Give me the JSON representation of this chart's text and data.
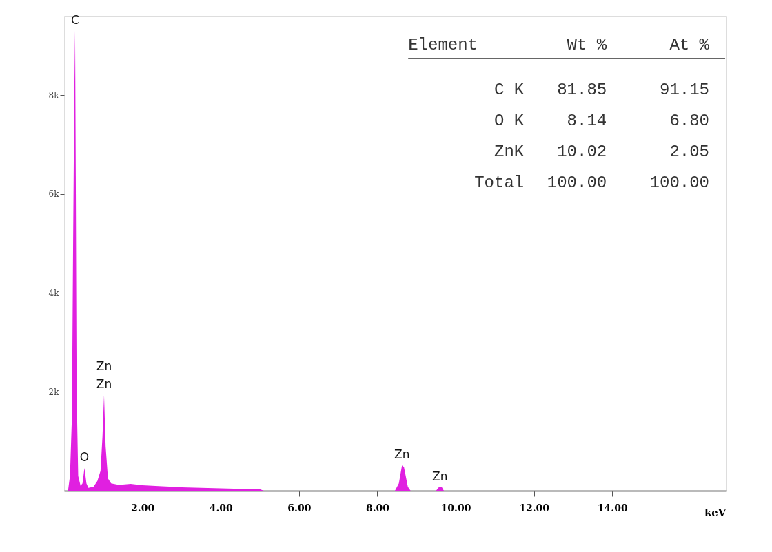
{
  "chart_data": {
    "type": "area",
    "xlabel": "keV",
    "x": [
      0.1,
      0.15,
      0.2,
      0.23,
      0.26,
      0.28,
      0.3,
      0.32,
      0.36,
      0.42,
      0.47,
      0.52,
      0.57,
      0.62,
      0.75,
      0.85,
      0.93,
      0.98,
      1.02,
      1.06,
      1.12,
      1.2,
      1.4,
      1.7,
      2.0,
      2.5,
      3.0,
      3.5,
      4.0,
      4.5,
      5.0,
      5.1,
      8.45,
      8.55,
      8.63,
      8.68,
      8.78,
      8.85,
      9.5,
      9.57,
      9.65,
      9.7,
      16.9
    ],
    "series": [
      {
        "color": "#e020e0",
        "values": [
          0,
          300,
          1500,
          5000,
          8000,
          9300,
          6000,
          2000,
          300,
          100,
          150,
          460,
          150,
          60,
          80,
          200,
          400,
          1100,
          1930,
          900,
          250,
          150,
          120,
          140,
          110,
          90,
          70,
          60,
          50,
          40,
          30,
          0,
          0,
          150,
          510,
          480,
          80,
          0,
          0,
          70,
          70,
          0,
          0
        ]
      }
    ],
    "xlim": [
      0,
      16.9
    ],
    "ylim": [
      0,
      9600
    ],
    "xticks": [
      {
        "value": 2,
        "label": "2.00"
      },
      {
        "value": 4,
        "label": "4.00"
      },
      {
        "value": 6,
        "label": "6.00"
      },
      {
        "value": 8,
        "label": "8.00"
      },
      {
        "value": 10,
        "label": "10.00"
      },
      {
        "value": 12,
        "label": "12.00"
      },
      {
        "value": 14,
        "label": "14.00"
      },
      {
        "value": 16,
        "label": null
      }
    ],
    "yticks": [
      {
        "value": 2000,
        "label": "2k"
      },
      {
        "value": 4000,
        "label": "4k"
      },
      {
        "value": 6000,
        "label": "6k"
      },
      {
        "value": 8000,
        "label": "8k"
      }
    ],
    "grid": false,
    "annotations": [
      {
        "text": "C",
        "x": 0.28,
        "y": 9300
      },
      {
        "text": "O",
        "x": 0.52,
        "y": 460
      },
      {
        "text": "Zn",
        "x": 1.02,
        "y": 1930
      },
      {
        "text": "Zn",
        "x": 1.02,
        "y": 1930
      },
      {
        "text": "Zn",
        "x": 8.63,
        "y": 510
      },
      {
        "text": "Zn",
        "x": 9.6,
        "y": 70
      },
      "Element",
      "Wt %",
      "At %",
      "C K",
      "81.85",
      "91.15",
      "O K",
      "8.14",
      "6.80",
      "ZnK",
      "10.02",
      "2.05",
      "Total",
      "100.00",
      "100.00"
    ]
  }
}
